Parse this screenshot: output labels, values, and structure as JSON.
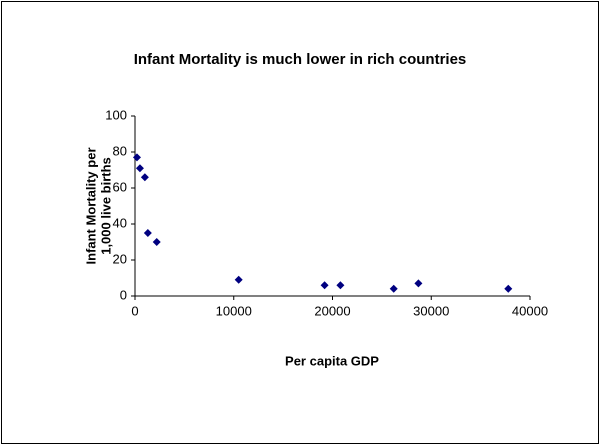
{
  "chart_data": {
    "type": "scatter",
    "title": "Infant Mortality is much lower in rich countries",
    "x_label": "Per capita GDP",
    "y_label": [
      "Infant Mortality per",
      "1,000 live births"
    ],
    "x": [
      200,
      500,
      1000,
      1300,
      2200,
      10500,
      19200,
      20800,
      26200,
      28700,
      37800
    ],
    "values": [
      77,
      71,
      66,
      35,
      30,
      9,
      6,
      6,
      4,
      7,
      4
    ],
    "color": "#000080",
    "xlim": [
      0,
      40000
    ],
    "xticks": [
      0,
      10000,
      20000,
      30000,
      40000
    ],
    "ylim": [
      0,
      100
    ],
    "yticks": [
      0,
      20,
      40,
      60,
      80,
      100
    ],
    "grid": false
  }
}
